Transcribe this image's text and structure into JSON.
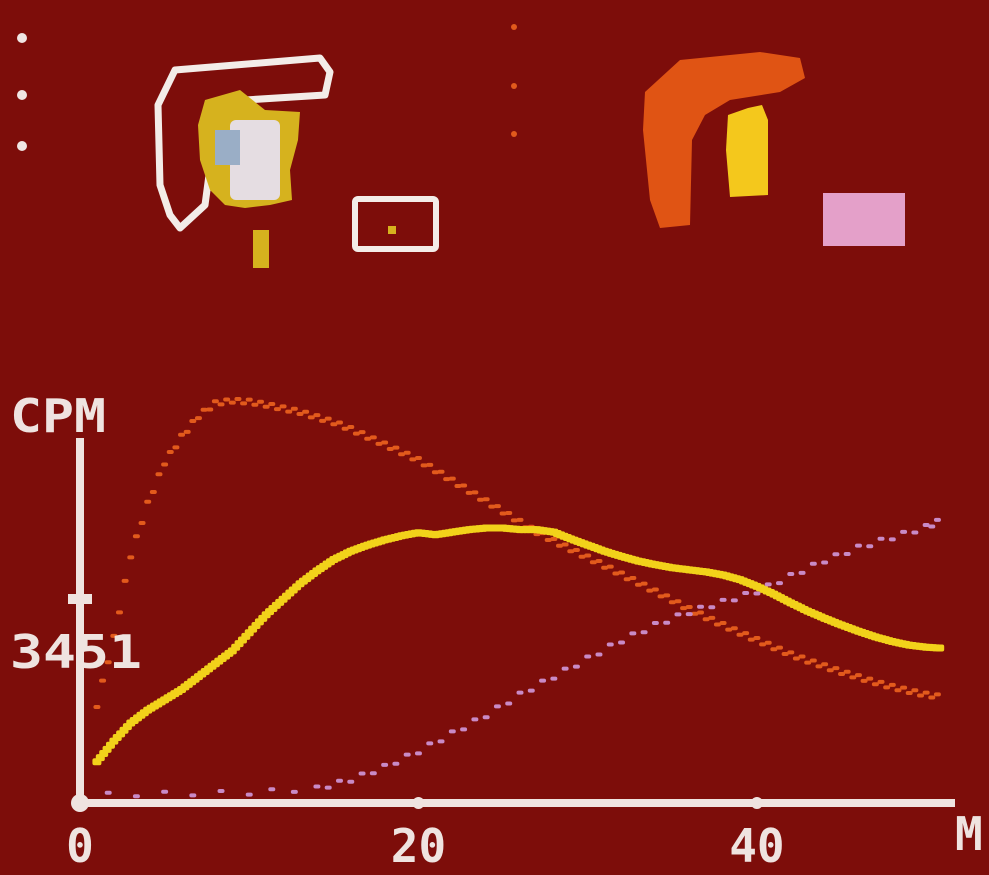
{
  "colors": {
    "background": "#7d0d0a",
    "axis": "#efe3e0",
    "roi_outline": "#f3ece8",
    "orange": "#e25a1c",
    "yellow": "#f2d21a",
    "purple": "#c98ac6"
  },
  "chart_data": {
    "type": "scatter",
    "ylabel": "CPM",
    "xlabel": "M",
    "y_marker_label": "3451",
    "y_marker_value": 3451,
    "xlim": [
      0,
      52
    ],
    "ylim": [
      0,
      8200
    ],
    "x_ticks": [
      0,
      20,
      40
    ],
    "x_tick_labels": [
      "0",
      "20",
      "40"
    ],
    "series": [
      {
        "color_key": "orange",
        "style": "dotted",
        "points": [
          [
            1,
            1900
          ],
          [
            2,
            3200
          ],
          [
            3,
            4800
          ],
          [
            4,
            5800
          ],
          [
            5,
            6600
          ],
          [
            6,
            7100
          ],
          [
            7,
            7500
          ],
          [
            8,
            7750
          ],
          [
            9,
            7800
          ],
          [
            10,
            7780
          ],
          [
            11,
            7720
          ],
          [
            12,
            7650
          ],
          [
            13,
            7580
          ],
          [
            14,
            7480
          ],
          [
            15,
            7380
          ],
          [
            16,
            7250
          ],
          [
            17,
            7100
          ],
          [
            18,
            6950
          ],
          [
            19,
            6800
          ],
          [
            20,
            6650
          ],
          [
            21,
            6450
          ],
          [
            22,
            6250
          ],
          [
            23,
            6050
          ],
          [
            24,
            5850
          ],
          [
            25,
            5650
          ],
          [
            26,
            5450
          ],
          [
            27,
            5250
          ],
          [
            28,
            5080
          ],
          [
            29,
            4920
          ],
          [
            30,
            4760
          ],
          [
            31,
            4600
          ],
          [
            32,
            4430
          ],
          [
            33,
            4270
          ],
          [
            34,
            4100
          ],
          [
            35,
            3930
          ],
          [
            36,
            3760
          ],
          [
            37,
            3600
          ],
          [
            38,
            3450
          ],
          [
            39,
            3300
          ],
          [
            40,
            3160
          ],
          [
            41,
            3020
          ],
          [
            42,
            2880
          ],
          [
            43,
            2760
          ],
          [
            44,
            2650
          ],
          [
            45,
            2540
          ],
          [
            46,
            2440
          ],
          [
            47,
            2340
          ],
          [
            48,
            2250
          ],
          [
            49,
            2170
          ],
          [
            50,
            2100
          ],
          [
            51,
            2050
          ]
        ]
      },
      {
        "color_key": "yellow",
        "style": "solid",
        "points": [
          [
            1,
            800
          ],
          [
            2,
            1200
          ],
          [
            3,
            1550
          ],
          [
            4,
            1800
          ],
          [
            5,
            2000
          ],
          [
            6,
            2200
          ],
          [
            7,
            2450
          ],
          [
            8,
            2700
          ],
          [
            9,
            2950
          ],
          [
            10,
            3300
          ],
          [
            11,
            3650
          ],
          [
            12,
            3950
          ],
          [
            13,
            4250
          ],
          [
            14,
            4500
          ],
          [
            15,
            4720
          ],
          [
            16,
            4880
          ],
          [
            17,
            5000
          ],
          [
            18,
            5100
          ],
          [
            19,
            5180
          ],
          [
            20,
            5240
          ],
          [
            21,
            5200
          ],
          [
            22,
            5250
          ],
          [
            23,
            5300
          ],
          [
            24,
            5330
          ],
          [
            25,
            5330
          ],
          [
            26,
            5300
          ],
          [
            27,
            5300
          ],
          [
            28,
            5250
          ],
          [
            29,
            5120
          ],
          [
            30,
            5000
          ],
          [
            31,
            4880
          ],
          [
            32,
            4780
          ],
          [
            33,
            4690
          ],
          [
            34,
            4620
          ],
          [
            35,
            4560
          ],
          [
            36,
            4520
          ],
          [
            37,
            4480
          ],
          [
            38,
            4420
          ],
          [
            39,
            4330
          ],
          [
            40,
            4200
          ],
          [
            41,
            4050
          ],
          [
            42,
            3880
          ],
          [
            43,
            3720
          ],
          [
            44,
            3580
          ],
          [
            45,
            3450
          ],
          [
            46,
            3330
          ],
          [
            47,
            3220
          ],
          [
            48,
            3130
          ],
          [
            49,
            3060
          ],
          [
            50,
            3020
          ],
          [
            51,
            3000
          ]
        ]
      },
      {
        "color_key": "purple",
        "style": "dotted",
        "points": [
          [
            0,
            150
          ],
          [
            5,
            180
          ],
          [
            10,
            200
          ],
          [
            14,
            280
          ],
          [
            16,
            450
          ],
          [
            18,
            700
          ],
          [
            20,
            1000
          ],
          [
            22,
            1350
          ],
          [
            24,
            1700
          ],
          [
            26,
            2100
          ],
          [
            28,
            2450
          ],
          [
            30,
            2800
          ],
          [
            32,
            3150
          ],
          [
            34,
            3450
          ],
          [
            36,
            3700
          ],
          [
            38,
            3900
          ],
          [
            40,
            4100
          ],
          [
            42,
            4400
          ],
          [
            44,
            4700
          ],
          [
            46,
            4950
          ],
          [
            48,
            5150
          ],
          [
            50,
            5350
          ],
          [
            51,
            5500
          ]
        ]
      }
    ]
  },
  "roi_panel": {
    "left_group": {
      "outline_color_key": "roi_outline",
      "fill_colors": [
        "#d6b21e",
        "#e5dde2",
        "#9aaec6"
      ]
    },
    "right_group": {
      "fill_colors": [
        "#e05414",
        "#f4c81c",
        "#e4a0c9"
      ]
    }
  }
}
